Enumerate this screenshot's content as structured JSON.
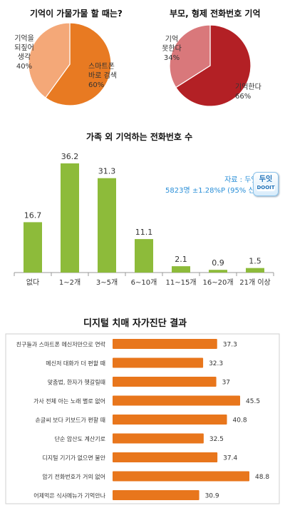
{
  "chart_data": [
    {
      "type": "pie",
      "title": "기억이 가물가물 할 때는?",
      "slices": [
        {
          "label": "스마트폰 바로 검색",
          "label_lines": [
            "스마트폰",
            "바로 검색"
          ],
          "value": 60,
          "value_label": "60%",
          "color": "#e87a22"
        },
        {
          "label": "기억을 되짚어 생각",
          "label_lines": [
            "기억을",
            "되짚어",
            "생각"
          ],
          "value": 40,
          "value_label": "40%",
          "color": "#f4a878"
        }
      ]
    },
    {
      "type": "pie",
      "title": "부모, 형제 전화번호 기억",
      "slices": [
        {
          "label": "기억한다",
          "label_lines": [
            "기억한다"
          ],
          "value": 66,
          "value_label": "66%",
          "color": "#b32025"
        },
        {
          "label": "기억 못한다",
          "label_lines": [
            "기억",
            "못한다"
          ],
          "value": 34,
          "value_label": "34%",
          "color": "#d9787b"
        }
      ]
    },
    {
      "type": "bar",
      "title": "가족 외 기억하는 전화번호 수",
      "categories": [
        "없다",
        "1~2개",
        "3~5개",
        "6~10개",
        "11~15개",
        "16~20개",
        "21개 이상"
      ],
      "values": [
        16.7,
        36.2,
        31.3,
        11.1,
        2.1,
        0.9,
        1.5
      ],
      "value_labels": [
        "16.7",
        "36.2",
        "31.3",
        "11.1",
        "2.1",
        "0.9",
        "1.5"
      ],
      "ylim": [
        0,
        40
      ],
      "color": "#8dbb3a",
      "source_line1": "자료 : 두잇서베이",
      "source_line2": "5823명 ±1.28%P (95% 신뢰수준)",
      "badge_line1": "두잇",
      "badge_line2": "DOOIT"
    },
    {
      "type": "bar",
      "orientation": "horizontal",
      "title": "디지털 치매 자가진단 결과",
      "categories": [
        "친구들과 스마트폰 메신저만으로 연락",
        "메신저 대화가 더 편할 때",
        "맞춤법, 한자가 헷갈릴때",
        "가사 전체 아는 노래 별로 없어",
        "손글씨 보다 키보드가 편할 때",
        "단순 암산도 계산기로",
        "디지털 기기가 없으면 불안",
        "암기 전화번호가 거의 없어",
        "어제먹은 식사메뉴가 기억안나"
      ],
      "values": [
        37.3,
        32.3,
        37,
        45.5,
        40.8,
        32.5,
        37.4,
        48.8,
        30.9
      ],
      "value_labels": [
        "37.3",
        "32.3",
        "37",
        "45.5",
        "40.8",
        "32.5",
        "37.4",
        "48.8",
        "30.9"
      ],
      "xlim": [
        0,
        55
      ],
      "color": "#e8761c"
    }
  ]
}
